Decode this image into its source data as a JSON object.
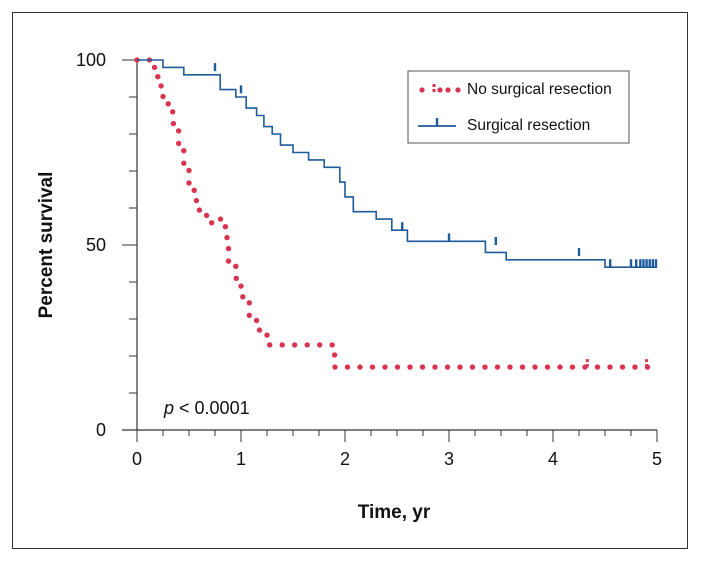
{
  "chart_data": {
    "type": "line",
    "subtype": "kaplan-meier",
    "xlabel": "Time, yr",
    "ylabel": "Percent survival",
    "xlim": [
      0,
      5
    ],
    "ylim": [
      0,
      100
    ],
    "x_ticks": [
      "0",
      "1",
      "2",
      "3",
      "4",
      "5"
    ],
    "y_ticks": [
      "0",
      "50",
      "100"
    ],
    "annotation": {
      "italic": "p",
      "text": " < 0.0001"
    },
    "series": [
      {
        "name": "No surgical resection",
        "color": "#d9344f",
        "style": "dotted",
        "steps": [
          [
            0,
            100
          ],
          [
            0.12,
            98
          ],
          [
            0.2,
            93
          ],
          [
            0.25,
            89
          ],
          [
            0.3,
            86
          ],
          [
            0.35,
            82
          ],
          [
            0.4,
            76
          ],
          [
            0.45,
            71
          ],
          [
            0.5,
            66
          ],
          [
            0.55,
            62
          ],
          [
            0.6,
            58
          ],
          [
            0.7,
            56
          ],
          [
            0.75,
            57
          ],
          [
            0.85,
            52
          ],
          [
            0.88,
            45
          ],
          [
            0.95,
            41
          ],
          [
            1.0,
            36
          ],
          [
            1.08,
            31
          ],
          [
            1.15,
            27
          ],
          [
            1.25,
            23
          ],
          [
            1.9,
            17
          ],
          [
            5.0,
            17
          ]
        ],
        "censored": [
          [
            4.33,
            17
          ],
          [
            4.9,
            17
          ]
        ]
      },
      {
        "name": "Surgical resection",
        "color": "#1f5a9a",
        "style": "solid",
        "steps": [
          [
            0,
            100
          ],
          [
            0.25,
            98
          ],
          [
            0.45,
            96
          ],
          [
            0.8,
            92
          ],
          [
            0.95,
            90
          ],
          [
            1.05,
            87
          ],
          [
            1.15,
            85
          ],
          [
            1.22,
            82
          ],
          [
            1.3,
            80
          ],
          [
            1.38,
            77
          ],
          [
            1.5,
            75
          ],
          [
            1.65,
            73
          ],
          [
            1.8,
            71
          ],
          [
            1.95,
            67
          ],
          [
            2.0,
            63
          ],
          [
            2.08,
            59
          ],
          [
            2.3,
            57
          ],
          [
            2.45,
            54
          ],
          [
            2.6,
            51
          ],
          [
            3.35,
            48
          ],
          [
            3.55,
            46
          ],
          [
            4.2,
            46
          ],
          [
            4.5,
            44
          ],
          [
            5.0,
            44
          ]
        ],
        "censored": [
          [
            0.75,
            97
          ],
          [
            1.0,
            91
          ],
          [
            2.55,
            54
          ],
          [
            3.0,
            51
          ],
          [
            3.45,
            50
          ],
          [
            4.25,
            47
          ],
          [
            4.55,
            44
          ],
          [
            4.75,
            44
          ],
          [
            4.8,
            44
          ],
          [
            4.84,
            44
          ],
          [
            4.87,
            44
          ],
          [
            4.9,
            44
          ],
          [
            4.93,
            44
          ],
          [
            4.96,
            44
          ],
          [
            4.99,
            44
          ]
        ]
      }
    ],
    "legend_position": "top-right"
  }
}
